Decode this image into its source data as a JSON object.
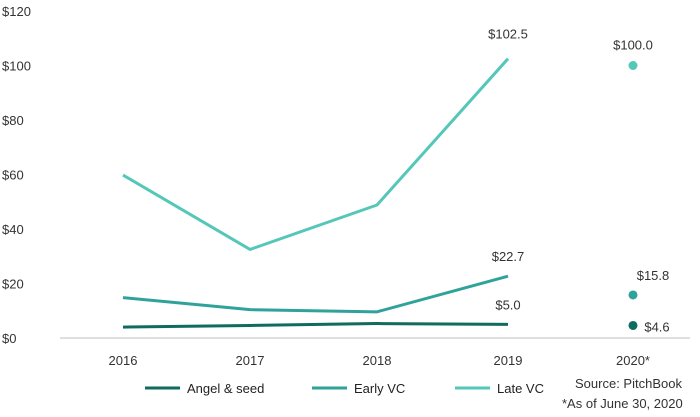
{
  "chart_data": {
    "type": "line",
    "categories": [
      "2016",
      "2017",
      "2018",
      "2019",
      "2020*"
    ],
    "yticks": [
      "$0",
      "$20",
      "$40",
      "$60",
      "$80",
      "$100",
      "$120"
    ],
    "ylim": [
      0,
      120
    ],
    "series": [
      {
        "name": "Angel & seed",
        "color": "#0f6b5e",
        "values": [
          4.0,
          4.6,
          5.3,
          5.0,
          null
        ],
        "point_2020": 4.6,
        "labels": [
          {
            "index": 3,
            "text": "$5.0"
          },
          {
            "index": 4,
            "text": "$4.6"
          }
        ]
      },
      {
        "name": "Early VC",
        "color": "#2fa39a",
        "values": [
          14.8,
          10.4,
          9.6,
          22.7,
          null
        ],
        "point_2020": 15.8,
        "labels": [
          {
            "index": 3,
            "text": "$22.7"
          },
          {
            "index": 4,
            "text": "$15.8"
          }
        ]
      },
      {
        "name": "Late VC",
        "color": "#55c7b9",
        "values": [
          59.8,
          32.5,
          48.8,
          102.5,
          null
        ],
        "point_2020": 100.0,
        "labels": [
          {
            "index": 3,
            "text": "$102.5"
          },
          {
            "index": 4,
            "text": "$100.0"
          }
        ]
      }
    ],
    "legend": "bottom",
    "grid": false
  },
  "notes": {
    "source": "Source: PitchBook",
    "asof": "*As of June 30, 2020"
  }
}
